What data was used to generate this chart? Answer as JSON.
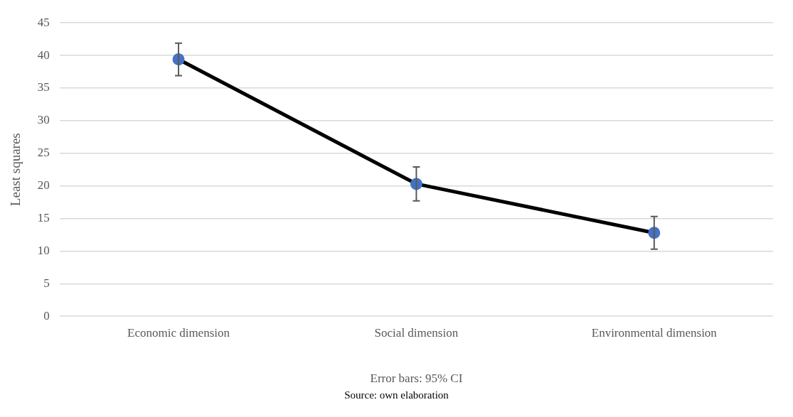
{
  "chart_data": {
    "type": "line",
    "ylabel": "Least squares",
    "xlabel": "Error bars: 95% CI",
    "categories": [
      "Economic dimension",
      "Social dimension",
      "Environmental dimension"
    ],
    "series": [
      {
        "color": "#000000",
        "colors": [
          "#4472c4",
          "#4472c4",
          "#4472c4"
        ],
        "values": [
          39.4,
          20.3,
          12.8
        ],
        "errors": [
          2.5,
          2.6,
          2.5
        ]
      }
    ],
    "ylim": [
      0,
      45
    ],
    "yticks": [
      0,
      5,
      10,
      15,
      20,
      25,
      30,
      35,
      40,
      45
    ],
    "grid": "y",
    "legend": false,
    "marker": "circle",
    "line_style": "solid",
    "annotations": [
      "Source: own elaboration"
    ]
  }
}
